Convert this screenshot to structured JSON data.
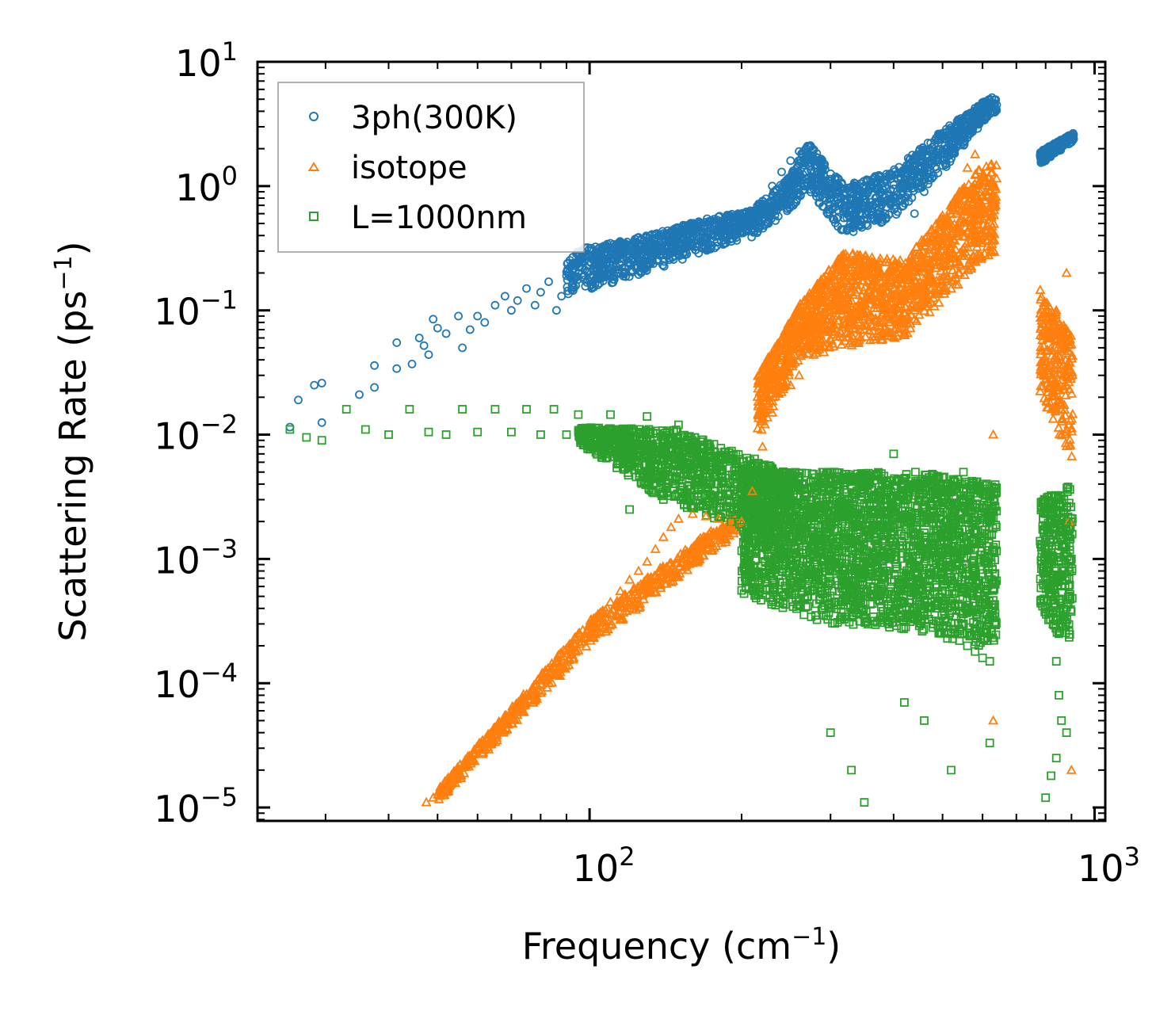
{
  "chart_data": {
    "type": "scatter",
    "title": "",
    "xlabel": "Frequency (cm",
    "xlabel_sup": "−1",
    "xlabel_tail": ")",
    "ylabel": "Scattering Rate (ps",
    "ylabel_sup": "−1",
    "ylabel_tail": ")",
    "xscale": "log",
    "yscale": "log",
    "xlim": [
      22,
      1050
    ],
    "ylim": [
      7.8e-06,
      10
    ],
    "x_ticks": [
      {
        "value": 100,
        "base": "10",
        "exp": "2"
      },
      {
        "value": 1000,
        "base": "10",
        "exp": "3"
      }
    ],
    "y_ticks": [
      {
        "value": 10,
        "base": "10",
        "exp": "1"
      },
      {
        "value": 1,
        "base": "10",
        "exp": "0"
      },
      {
        "value": 0.1,
        "base": "10",
        "exp": "−1"
      },
      {
        "value": 0.01,
        "base": "10",
        "exp": "−2"
      },
      {
        "value": 0.001,
        "base": "10",
        "exp": "−3"
      },
      {
        "value": 0.0001,
        "base": "10",
        "exp": "−4"
      },
      {
        "value": 1e-05,
        "base": "10",
        "exp": "−5"
      }
    ],
    "legend_position": "top-left",
    "series": [
      {
        "name": "3ph(300K)",
        "marker": "circle",
        "color": "#1f77b4",
        "points": [
          [
            25.5,
            0.0115
          ],
          [
            26.5,
            0.019
          ],
          [
            28.5,
            0.025
          ],
          [
            29.5,
            0.026
          ],
          [
            29.5,
            0.0125
          ],
          [
            35,
            0.021
          ],
          [
            37.5,
            0.024
          ],
          [
            37.5,
            0.036
          ],
          [
            41.5,
            0.055
          ],
          [
            41.5,
            0.034
          ],
          [
            44.5,
            0.037
          ],
          [
            46,
            0.06
          ],
          [
            47,
            0.052
          ],
          [
            48,
            0.044
          ],
          [
            49,
            0.085
          ],
          [
            50,
            0.072
          ],
          [
            52,
            0.065
          ],
          [
            55,
            0.09
          ],
          [
            56,
            0.05
          ],
          [
            58,
            0.07
          ],
          [
            60,
            0.09
          ],
          [
            62,
            0.08
          ],
          [
            65,
            0.11
          ],
          [
            68,
            0.13
          ],
          [
            70,
            0.1
          ],
          [
            72,
            0.12
          ],
          [
            75,
            0.15
          ],
          [
            78,
            0.11
          ],
          [
            80,
            0.14
          ],
          [
            83,
            0.17
          ],
          [
            86,
            0.1
          ],
          [
            88,
            0.13
          ],
          [
            90,
            0.19
          ],
          [
            95,
            0.2
          ],
          [
            100,
            0.17
          ],
          [
            105,
            0.23
          ],
          [
            110,
            0.2
          ],
          [
            115,
            0.26
          ],
          [
            120,
            0.24
          ],
          [
            125,
            0.3
          ],
          [
            130,
            0.27
          ],
          [
            135,
            0.33
          ],
          [
            140,
            0.3
          ],
          [
            145,
            0.37
          ],
          [
            150,
            0.34
          ],
          [
            160,
            0.4
          ],
          [
            170,
            0.38
          ],
          [
            180,
            0.45
          ],
          [
            190,
            0.42
          ],
          [
            200,
            0.52
          ],
          [
            210,
            0.6
          ],
          [
            220,
            0.75
          ],
          [
            230,
            1.0
          ],
          [
            240,
            1.3
          ],
          [
            250,
            1.6
          ],
          [
            260,
            1.9
          ],
          [
            270,
            2.1
          ],
          [
            280,
            1.6
          ],
          [
            290,
            1.1
          ],
          [
            300,
            0.8
          ],
          [
            320,
            0.65
          ],
          [
            340,
            0.7
          ],
          [
            360,
            0.55
          ],
          [
            380,
            0.75
          ],
          [
            400,
            0.95
          ],
          [
            420,
            0.8
          ],
          [
            440,
            0.6
          ],
          [
            460,
            0.9
          ],
          [
            480,
            1.2
          ],
          [
            500,
            1.6
          ],
          [
            520,
            2.0
          ],
          [
            540,
            2.5
          ],
          [
            560,
            3.2
          ],
          [
            580,
            4.0
          ],
          [
            600,
            4.6
          ],
          [
            620,
            5.0
          ],
          [
            640,
            4.5
          ],
          [
            800,
            1.6
          ],
          [
            820,
            1.8
          ],
          [
            840,
            2.0
          ],
          [
            860,
            2.2
          ],
          [
            880,
            2.4
          ],
          [
            900,
            2.5
          ]
        ]
      },
      {
        "name": "isotope",
        "marker": "triangle",
        "color": "#ff7f0e",
        "points": [
          [
            47.5,
            1.1e-05
          ],
          [
            49,
            1.2e-05
          ],
          [
            51,
            1.4e-05
          ],
          [
            53,
            1.7e-05
          ],
          [
            55,
            2e-05
          ],
          [
            58,
            2.5e-05
          ],
          [
            60,
            2.9e-05
          ],
          [
            63,
            3.6e-05
          ],
          [
            66,
            4.5e-05
          ],
          [
            70,
            6e-05
          ],
          [
            74,
            7.5e-05
          ],
          [
            78,
            9.5e-05
          ],
          [
            82,
            0.00012
          ],
          [
            86,
            0.00015
          ],
          [
            90,
            0.00019
          ],
          [
            95,
            0.00025
          ],
          [
            100,
            0.0003
          ],
          [
            105,
            0.00037
          ],
          [
            110,
            0.00045
          ],
          [
            115,
            0.00055
          ],
          [
            120,
            0.00068
          ],
          [
            125,
            0.0008
          ],
          [
            130,
            0.00095
          ],
          [
            135,
            0.0012
          ],
          [
            140,
            0.0015
          ],
          [
            145,
            0.0018
          ],
          [
            150,
            0.0021
          ],
          [
            160,
            0.0023
          ],
          [
            170,
            0.0022
          ],
          [
            180,
            0.0021
          ],
          [
            190,
            0.0018
          ],
          [
            200,
            0.002
          ],
          [
            210,
            0.0035
          ],
          [
            220,
            0.008
          ],
          [
            230,
            0.015
          ],
          [
            240,
            0.022
          ],
          [
            250,
            0.025
          ],
          [
            260,
            0.03
          ],
          [
            270,
            0.045
          ],
          [
            280,
            0.05
          ],
          [
            290,
            0.07
          ],
          [
            300,
            0.09
          ],
          [
            310,
            0.1
          ],
          [
            320,
            0.11
          ],
          [
            330,
            0.12
          ],
          [
            340,
            0.08
          ],
          [
            350,
            0.07
          ],
          [
            360,
            0.09
          ],
          [
            380,
            0.12
          ],
          [
            400,
            0.15
          ],
          [
            420,
            0.13
          ],
          [
            440,
            0.1
          ],
          [
            460,
            0.14
          ],
          [
            480,
            0.25
          ],
          [
            500,
            0.4
          ],
          [
            520,
            0.6
          ],
          [
            540,
            0.9
          ],
          [
            560,
            1.4
          ],
          [
            580,
            1.8
          ],
          [
            600,
            1.2
          ],
          [
            620,
            0.6
          ],
          [
            630,
            0.01
          ],
          [
            630,
            5e-05
          ],
          [
            800,
            0.03
          ],
          [
            820,
            0.05
          ],
          [
            840,
            0.1
          ],
          [
            860,
            0.06
          ],
          [
            880,
            0.2
          ],
          [
            890,
            0.002
          ],
          [
            900,
            2e-05
          ]
        ]
      },
      {
        "name": "L=1000nm",
        "marker": "square",
        "color": "#2ca02c",
        "points": [
          [
            25.5,
            0.011
          ],
          [
            27.5,
            0.0095
          ],
          [
            29.5,
            0.009
          ],
          [
            33,
            0.016
          ],
          [
            36,
            0.011
          ],
          [
            40,
            0.01
          ],
          [
            44,
            0.016
          ],
          [
            48,
            0.0105
          ],
          [
            52,
            0.01
          ],
          [
            56,
            0.016
          ],
          [
            60,
            0.0105
          ],
          [
            65,
            0.016
          ],
          [
            70,
            0.0105
          ],
          [
            75,
            0.016
          ],
          [
            80,
            0.01
          ],
          [
            85,
            0.016
          ],
          [
            90,
            0.01
          ],
          [
            95,
            0.0145
          ],
          [
            100,
            0.01
          ],
          [
            110,
            0.0145
          ],
          [
            120,
            0.0095
          ],
          [
            130,
            0.014
          ],
          [
            140,
            0.009
          ],
          [
            150,
            0.012
          ],
          [
            160,
            0.0075
          ],
          [
            170,
            0.006
          ],
          [
            180,
            0.004
          ],
          [
            190,
            0.0035
          ],
          [
            200,
            0.003
          ],
          [
            210,
            0.0025
          ],
          [
            220,
            0.002
          ],
          [
            230,
            0.0018
          ],
          [
            240,
            0.0015
          ],
          [
            250,
            0.0012
          ],
          [
            260,
            0.0011
          ],
          [
            270,
            0.001
          ],
          [
            280,
            0.0009
          ],
          [
            300,
            0.0008
          ],
          [
            320,
            0.0007
          ],
          [
            340,
            0.00065
          ],
          [
            360,
            0.0006
          ],
          [
            380,
            0.00055
          ],
          [
            400,
            0.0005
          ],
          [
            420,
            0.00045
          ],
          [
            440,
            0.0004
          ],
          [
            460,
            0.00035
          ],
          [
            480,
            0.0003
          ],
          [
            500,
            0.00028
          ],
          [
            520,
            0.00025
          ],
          [
            540,
            0.00022
          ],
          [
            560,
            0.0002
          ],
          [
            580,
            0.00018
          ],
          [
            600,
            0.00016
          ],
          [
            620,
            0.00015
          ],
          [
            300,
            4e-05
          ],
          [
            330,
            2e-05
          ],
          [
            350,
            1.1e-05
          ],
          [
            420,
            7e-05
          ],
          [
            460,
            5e-05
          ],
          [
            520,
            2e-05
          ],
          [
            620,
            3.3e-05
          ],
          [
            120,
            0.0025
          ],
          [
            140,
            0.003
          ],
          [
            160,
            0.0026
          ],
          [
            180,
            0.0022
          ],
          [
            200,
            0.0018
          ],
          [
            220,
            0.0015
          ],
          [
            240,
            0.003
          ],
          [
            260,
            0.004
          ],
          [
            280,
            0.0045
          ],
          [
            300,
            0.005
          ],
          [
            350,
            0.0045
          ],
          [
            400,
            0.007
          ],
          [
            450,
            0.004
          ],
          [
            500,
            0.0045
          ],
          [
            550,
            0.005
          ],
          [
            600,
            0.004
          ],
          [
            800,
            0.0012
          ],
          [
            810,
            0.0008
          ],
          [
            820,
            0.0005
          ],
          [
            830,
            0.0003
          ],
          [
            840,
            0.00015
          ],
          [
            850,
            8e-05
          ],
          [
            860,
            5e-05
          ],
          [
            870,
            0.003
          ],
          [
            880,
            0.002
          ],
          [
            890,
            0.0015
          ],
          [
            900,
            0.001
          ],
          [
            800,
            1.2e-05
          ],
          [
            820,
            1.8e-05
          ],
          [
            840,
            2.5e-05
          ],
          [
            880,
            4e-05
          ]
        ]
      }
    ],
    "dense_regions": [
      {
        "series": 0,
        "x_range": [
          90,
          640
        ],
        "y_lo": [
          0.13,
          0.2,
          0.3,
          0.38,
          0.65,
          0.95,
          0.4,
          0.55,
          1.3,
          3.8
        ],
        "y_hi": [
          0.3,
          0.4,
          0.55,
          0.65,
          1.2,
          2.3,
          1.0,
          1.35,
          2.8,
          5.2
        ],
        "x_samples": [
          90,
          130,
          170,
          210,
          250,
          270,
          320,
          400,
          500,
          620
        ],
        "count": 1800
      },
      {
        "series": 0,
        "x_range": [
          780,
          910
        ],
        "y_lo": [
          1.5,
          2.3
        ],
        "y_hi": [
          1.9,
          2.7
        ],
        "x_samples": [
          780,
          910
        ],
        "count": 220
      },
      {
        "series": 1,
        "x_range": [
          50,
          200
        ],
        "y_lo": [
          1.1e-05,
          0.0002,
          0.0017
        ],
        "y_hi": [
          1.4e-05,
          0.00032,
          0.0026
        ],
        "x_samples": [
          50,
          100,
          200
        ],
        "count": 700
      },
      {
        "series": 1,
        "x_range": [
          215,
          640
        ],
        "y_lo": [
          0.009,
          0.04,
          0.05,
          0.06,
          0.25
        ],
        "y_hi": [
          0.03,
          0.11,
          0.3,
          0.25,
          1.5
        ],
        "x_samples": [
          215,
          260,
          320,
          420,
          600
        ],
        "count": 1600
      },
      {
        "series": 1,
        "x_range": [
          780,
          905
        ],
        "y_lo": [
          0.02,
          0.006
        ],
        "y_hi": [
          0.15,
          0.06
        ],
        "x_samples": [
          780,
          905
        ],
        "count": 260
      },
      {
        "series": 2,
        "x_range": [
          95,
          250
        ],
        "y_lo": [
          0.0085,
          0.0025,
          0.0015
        ],
        "y_hi": [
          0.0115,
          0.011,
          0.005
        ],
        "x_samples": [
          95,
          150,
          250
        ],
        "count": 1100
      },
      {
        "series": 2,
        "x_range": [
          200,
          640
        ],
        "y_lo": [
          0.0005,
          0.0003,
          0.00025,
          0.00018
        ],
        "y_hi": [
          0.005,
          0.005,
          0.005,
          0.004
        ],
        "x_samples": [
          200,
          300,
          450,
          640
        ],
        "count": 2600
      },
      {
        "series": 2,
        "x_range": [
          780,
          905
        ],
        "y_lo": [
          0.0003,
          0.0002
        ],
        "y_hi": [
          0.003,
          0.004
        ],
        "x_samples": [
          780,
          905
        ],
        "count": 300
      }
    ]
  }
}
